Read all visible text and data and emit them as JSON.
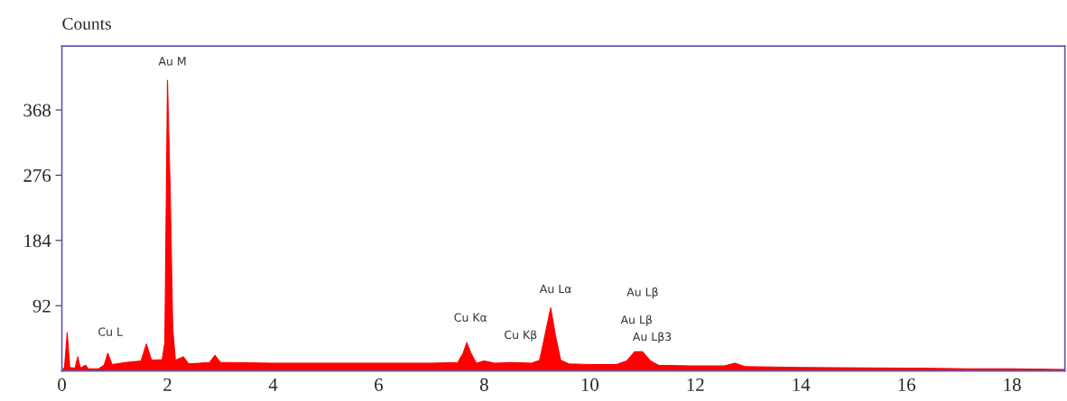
{
  "chart_data": {
    "type": "area",
    "ylabel": "Counts",
    "x": [
      0,
      0.05,
      0.1,
      0.15,
      0.25,
      0.3,
      0.35,
      0.45,
      0.5,
      0.7,
      0.8,
      0.87,
      0.95,
      1.2,
      1.5,
      1.6,
      1.7,
      1.9,
      1.95,
      2.0,
      2.05,
      2.1,
      2.15,
      2.3,
      2.4,
      2.8,
      2.9,
      3.0,
      4,
      5,
      6,
      7,
      7.5,
      7.6,
      7.67,
      7.75,
      7.85,
      8.0,
      8.2,
      8.5,
      8.9,
      9.05,
      9.15,
      9.26,
      9.35,
      9.45,
      9.6,
      10,
      10.5,
      10.7,
      10.85,
      11.0,
      11.15,
      11.3,
      12,
      12.55,
      12.75,
      12.95,
      14,
      16,
      17.2,
      18,
      19
    ],
    "series": [
      {
        "color": "#ff0000",
        "values": [
          0,
          5,
          54,
          5,
          4,
          20,
          4,
          8,
          3,
          3,
          8,
          25,
          9,
          12,
          14,
          38,
          15,
          16,
          40,
          410,
          260,
          60,
          15,
          20,
          10,
          12,
          22,
          12,
          11,
          11,
          11,
          11,
          12,
          25,
          40,
          25,
          11,
          14,
          11,
          12,
          11,
          15,
          50,
          89,
          50,
          15,
          10,
          9,
          9,
          14,
          27,
          27,
          14,
          8,
          7,
          7,
          11,
          6,
          5,
          4,
          3,
          3,
          2
        ]
      }
    ],
    "xlim": [
      0,
      19
    ],
    "xticks": [
      0,
      2,
      4,
      6,
      8,
      10,
      12,
      14,
      16,
      18
    ],
    "ylim": [
      0,
      458
    ],
    "yticks": [
      92,
      184,
      276,
      368
    ],
    "grid": false,
    "legend": false,
    "annotations": [
      {
        "text": "Au M",
        "x": 2.0,
        "y": 410
      },
      {
        "text": "Cu L",
        "x": 0.87,
        "y": 25
      },
      {
        "text": "Cu Kα",
        "x": 7.67,
        "y": 40
      },
      {
        "text": "Cu Kβ",
        "x": 8.5,
        "y": 12
      },
      {
        "text": "Au Lα",
        "x": 9.26,
        "y": 89
      },
      "Au Lβ",
      "Au Lβ",
      {
        "text": "Au Lβ3",
        "x": 10.85,
        "y": 27
      }
    ]
  }
}
